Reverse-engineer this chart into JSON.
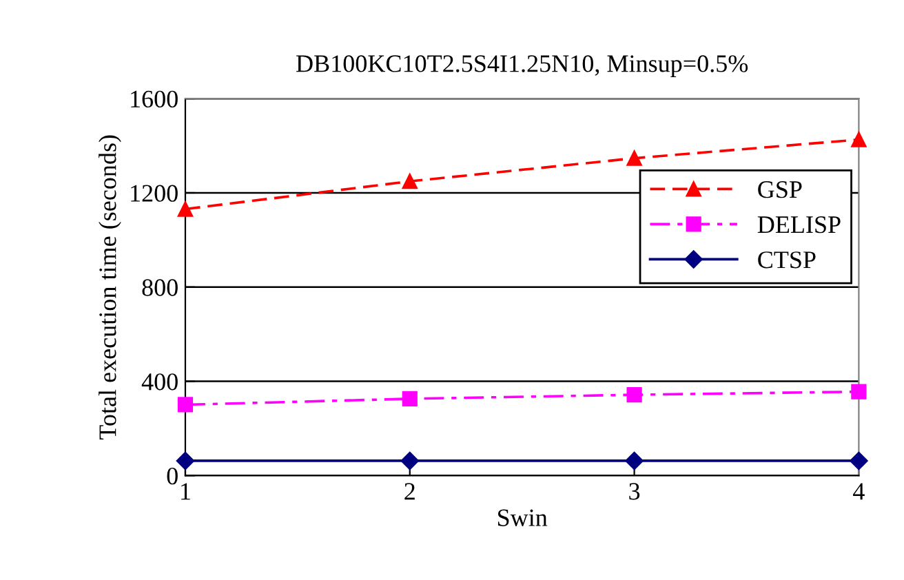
{
  "chart_data": {
    "type": "line",
    "title": "DB100KC10T2.5S4I1.25N10, Minsup=0.5%",
    "xlabel": "Swin",
    "ylabel": "Total execution time (seconds)",
    "x": [
      1,
      2,
      3,
      4
    ],
    "series": [
      {
        "name": "GSP",
        "color": "#ff0000",
        "marker": "triangle",
        "line_style": "dashed",
        "values": [
          1131,
          1249,
          1347,
          1426
        ]
      },
      {
        "name": "DELISP",
        "color": "#ff00ff",
        "marker": "square",
        "line_style": "dashdot",
        "values": [
          301,
          326,
          343,
          356
        ]
      },
      {
        "name": "CTSP",
        "color": "#000080",
        "marker": "diamond",
        "line_style": "solid",
        "values": [
          63,
          63,
          63,
          63
        ]
      }
    ],
    "xlim": [
      1,
      4
    ],
    "xticks": [
      1,
      2,
      3,
      4
    ],
    "ylim": [
      0,
      1600
    ],
    "yticks": [
      0,
      400,
      800,
      1200,
      1600
    ],
    "grid": "y",
    "legend": "right"
  }
}
